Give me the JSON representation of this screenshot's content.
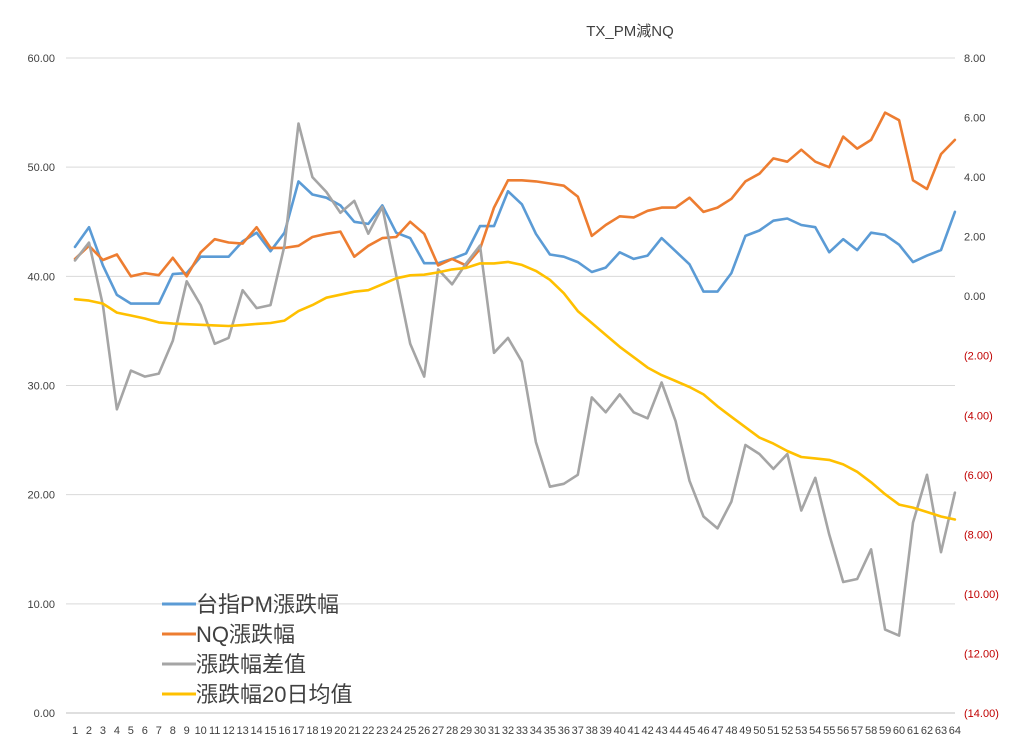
{
  "chart_data": {
    "type": "line",
    "title": "TX_PM減NQ",
    "xlabel": "",
    "ylabel": "",
    "categories": [
      "1",
      "2",
      "3",
      "4",
      "5",
      "6",
      "7",
      "8",
      "9",
      "10",
      "11",
      "12",
      "13",
      "14",
      "15",
      "16",
      "17",
      "18",
      "19",
      "20",
      "21",
      "22",
      "23",
      "24",
      "25",
      "26",
      "27",
      "28",
      "29",
      "30",
      "31",
      "32",
      "33",
      "34",
      "35",
      "36",
      "37",
      "38",
      "39",
      "40",
      "41",
      "42",
      "43",
      "44",
      "45",
      "46",
      "47",
      "48",
      "49",
      "50",
      "51",
      "52",
      "53",
      "54",
      "55",
      "56",
      "57",
      "58",
      "59",
      "60",
      "61",
      "62",
      "63",
      "64"
    ],
    "ylim_left": [
      0,
      60
    ],
    "ylim_right": [
      -14,
      8
    ],
    "y_ticks_left": [
      "0.00",
      "10.00",
      "20.00",
      "30.00",
      "40.00",
      "50.00",
      "60.00"
    ],
    "y_ticks_right": [
      "(14.00)",
      "(12.00)",
      "(10.00)",
      "(8.00)",
      "(6.00)",
      "(4.00)",
      "(2.00)",
      "0.00",
      "2.00",
      "4.00",
      "6.00",
      "8.00"
    ],
    "grid": true,
    "legend_position": "bottom-left",
    "series": [
      {
        "name": "台指PM漲跌幅",
        "axis": "left",
        "color": "#5b9bd5",
        "values": [
          42.7,
          44.5,
          41.0,
          38.3,
          37.5,
          37.5,
          37.5,
          40.2,
          40.3,
          41.8,
          41.8,
          41.8,
          43.2,
          44.0,
          42.3,
          44.0,
          48.7,
          47.5,
          47.2,
          46.5,
          45.0,
          44.8,
          46.5,
          44.0,
          43.5,
          41.2,
          41.2,
          41.6,
          42.1,
          44.6,
          44.6,
          47.8,
          46.6,
          43.9,
          42.0,
          41.8,
          41.3,
          40.4,
          40.8,
          42.2,
          41.6,
          41.9,
          43.5,
          42.3,
          41.1,
          38.6,
          38.6,
          40.3,
          43.7,
          44.2,
          45.1,
          45.3,
          44.7,
          44.5,
          42.2,
          43.4,
          42.4,
          44.0,
          43.8,
          42.9,
          41.3,
          41.9,
          42.4,
          45.9
        ]
      },
      {
        "name": "NQ漲跌幅",
        "axis": "left",
        "color": "#ed7d31",
        "values": [
          41.6,
          42.8,
          41.5,
          42.0,
          40.0,
          40.3,
          40.1,
          41.7,
          40.0,
          42.2,
          43.4,
          43.1,
          43.0,
          44.5,
          42.6,
          42.6,
          42.8,
          43.6,
          43.9,
          44.1,
          41.8,
          42.8,
          43.5,
          43.6,
          45.0,
          43.9,
          41.0,
          41.6,
          41.0,
          42.5,
          46.3,
          48.8,
          48.8,
          48.7,
          48.5,
          48.3,
          47.3,
          43.7,
          44.7,
          45.5,
          45.4,
          46.0,
          46.3,
          46.3,
          47.2,
          45.9,
          46.3,
          47.1,
          48.7,
          49.4,
          50.8,
          50.5,
          51.6,
          50.5,
          50.0,
          52.8,
          51.7,
          52.5,
          55.0,
          54.3,
          48.8,
          48.0,
          51.2,
          52.5
        ]
      },
      {
        "name": "漲跌幅差值",
        "axis": "right",
        "color": "#a5a5a5",
        "values": [
          1.2,
          1.8,
          -0.3,
          -3.8,
          -2.5,
          -2.7,
          -2.6,
          -1.5,
          0.5,
          -0.3,
          -1.6,
          -1.4,
          0.2,
          -0.4,
          -0.3,
          1.7,
          5.8,
          4.0,
          3.5,
          2.8,
          3.2,
          2.1,
          3.0,
          0.7,
          -1.6,
          -2.7,
          0.9,
          0.4,
          1.1,
          1.7,
          -1.9,
          -1.4,
          -2.2,
          -4.9,
          -6.4,
          -6.3,
          -6.0,
          -3.4,
          -3.9,
          -3.3,
          -3.9,
          -4.1,
          -2.9,
          -4.2,
          -6.2,
          -7.4,
          -7.8,
          -6.9,
          -5.0,
          -5.3,
          -5.8,
          -5.3,
          -7.2,
          -6.1,
          -8.0,
          -9.6,
          -9.5,
          -8.5,
          -11.2,
          -11.4,
          -7.6,
          -6.0,
          -8.6,
          -6.6
        ]
      },
      {
        "name": "漲跌幅20日均值",
        "axis": "right",
        "color": "#ffc000",
        "values": [
          -0.1,
          -0.15,
          -0.25,
          -0.55,
          -0.65,
          -0.75,
          -0.88,
          -0.92,
          -0.94,
          -0.96,
          -0.98,
          -1.0,
          -0.97,
          -0.93,
          -0.9,
          -0.82,
          -0.5,
          -0.3,
          -0.05,
          0.05,
          0.15,
          0.2,
          0.4,
          0.6,
          0.7,
          0.72,
          0.8,
          0.9,
          0.95,
          1.1,
          1.1,
          1.15,
          1.05,
          0.85,
          0.55,
          0.1,
          -0.5,
          -0.9,
          -1.3,
          -1.7,
          -2.05,
          -2.4,
          -2.65,
          -2.85,
          -3.05,
          -3.3,
          -3.7,
          -4.05,
          -4.4,
          -4.75,
          -4.95,
          -5.2,
          -5.4,
          -5.45,
          -5.5,
          -5.65,
          -5.9,
          -6.25,
          -6.65,
          -7.0,
          -7.1,
          -7.25,
          -7.4,
          -7.5
        ]
      }
    ]
  }
}
